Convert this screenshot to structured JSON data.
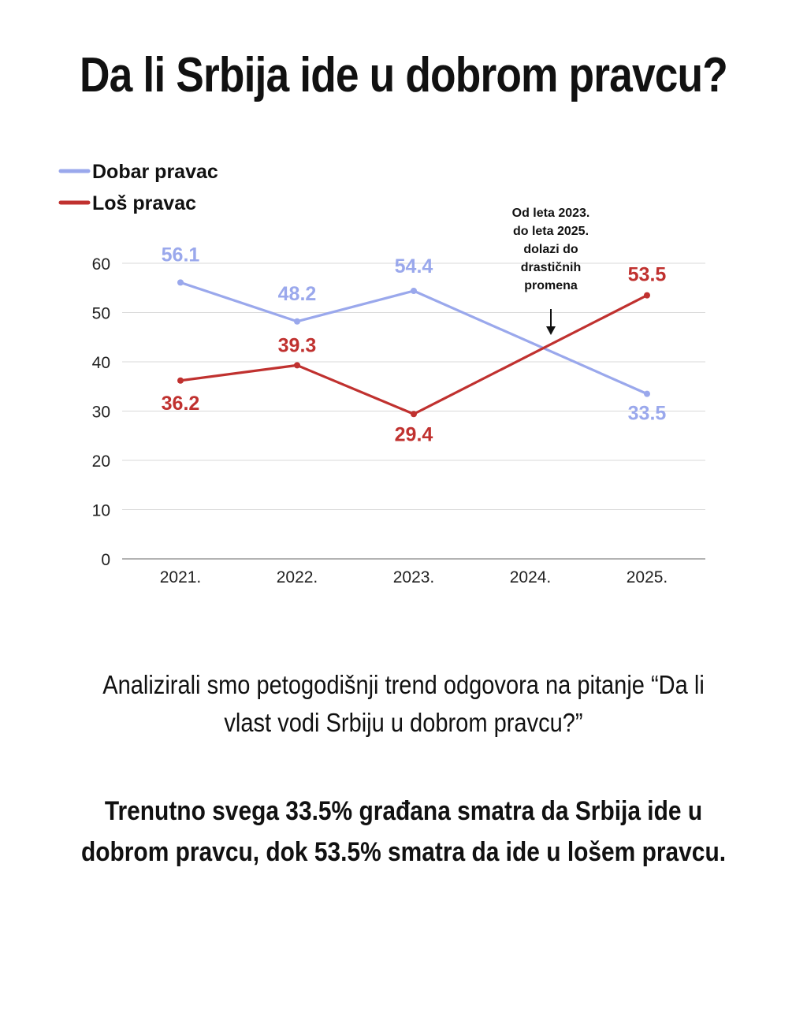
{
  "title": "Da li Srbija ide u dobrom pravcu?",
  "chart_data": {
    "type": "line",
    "categories": [
      "2021.",
      "2022.",
      "2023.",
      "2024.",
      "2025."
    ],
    "series": [
      {
        "name": "Dobar pravac",
        "color": "#9aa8ec",
        "values": [
          56.1,
          48.2,
          54.4,
          null,
          33.5
        ],
        "labels": [
          "56.1",
          "48.2",
          "54.4",
          null,
          "33.5"
        ]
      },
      {
        "name": "Loš pravac",
        "color": "#c0312f",
        "values": [
          36.2,
          39.3,
          29.4,
          null,
          53.5
        ],
        "labels": [
          "36.2",
          "39.3",
          "29.4",
          null,
          "53.5"
        ]
      }
    ],
    "yticks": [
      "0",
      "10",
      "20",
      "30",
      "40",
      "50",
      "60"
    ],
    "ylim": [
      0,
      60
    ],
    "grid": true,
    "legend": "top-left",
    "annotation": {
      "lines": [
        "Od leta 2023.",
        "do leta 2025.",
        "dolazi do",
        "drastičnih",
        "promena"
      ],
      "arrow": "down"
    }
  },
  "paragraph1": "Analizirali smo petogodišnji trend odgovora na pitanje “Da li vlast vodi Srbiju u dobrom pravcu?”",
  "paragraph2": "Trenutno svega 33.5% građana smatra da Srbija ide u dobrom pravcu, dok 53.5% smatra da ide u lošem pravcu."
}
